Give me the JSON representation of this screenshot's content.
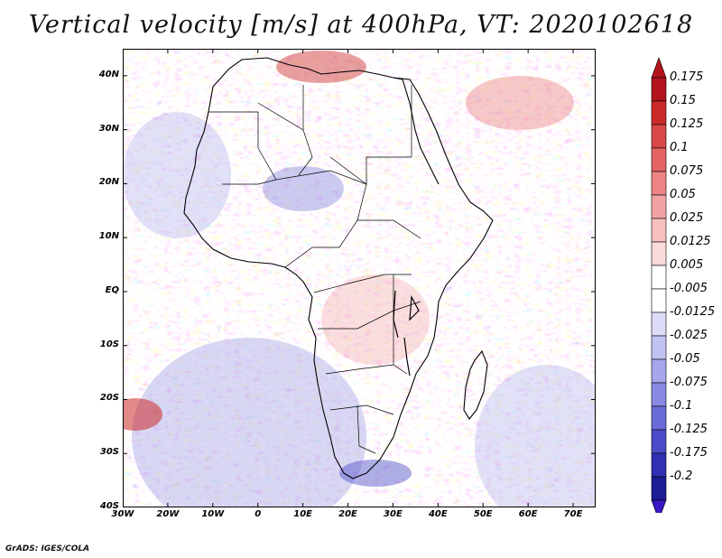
{
  "title": "Vertical velocity [m/s] at 400hPa, VT: 2020102618",
  "map": {
    "region": "Africa",
    "variable": "Vertical velocity",
    "units": "m/s",
    "level": "400hPa",
    "valid_time": "2020102618",
    "lat_range": [
      -40,
      45
    ],
    "lon_range": [
      -30,
      75
    ]
  },
  "axes": {
    "lat_ticks": [
      {
        "value": 40,
        "label": "40N"
      },
      {
        "value": 30,
        "label": "30N"
      },
      {
        "value": 20,
        "label": "20N"
      },
      {
        "value": 10,
        "label": "10N"
      },
      {
        "value": 0,
        "label": "EQ"
      },
      {
        "value": -10,
        "label": "10S"
      },
      {
        "value": -20,
        "label": "20S"
      },
      {
        "value": -30,
        "label": "30S"
      },
      {
        "value": -40,
        "label": "40S"
      }
    ],
    "lon_ticks": [
      {
        "value": -30,
        "label": "30W"
      },
      {
        "value": -20,
        "label": "20W"
      },
      {
        "value": -10,
        "label": "10W"
      },
      {
        "value": 0,
        "label": "0"
      },
      {
        "value": 10,
        "label": "10E"
      },
      {
        "value": 20,
        "label": "20E"
      },
      {
        "value": 30,
        "label": "30E"
      },
      {
        "value": 40,
        "label": "40E"
      },
      {
        "value": 50,
        "label": "50E"
      },
      {
        "value": 60,
        "label": "60E"
      },
      {
        "value": 70,
        "label": "70E"
      }
    ]
  },
  "colorbar": {
    "levels": [
      {
        "label": "0.175",
        "color": "#b3141c"
      },
      {
        "label": "0.15",
        "color": "#cc2a2a"
      },
      {
        "label": "0.125",
        "color": "#d94848"
      },
      {
        "label": "0.1",
        "color": "#e46464"
      },
      {
        "label": "0.075",
        "color": "#ec8484"
      },
      {
        "label": "0.05",
        "color": "#f2a2a2"
      },
      {
        "label": "0.025",
        "color": "#f7c0c0"
      },
      {
        "label": "0.0125",
        "color": "#fbdada"
      },
      {
        "label": "0.005",
        "color": "#ffffff"
      },
      {
        "label": "-0.005",
        "color": "#ffffff"
      },
      {
        "label": "-0.0125",
        "color": "#dcdcf8"
      },
      {
        "label": "-0.025",
        "color": "#c2c2f2"
      },
      {
        "label": "-0.05",
        "color": "#a6a6ec"
      },
      {
        "label": "-0.075",
        "color": "#8888e4"
      },
      {
        "label": "-0.1",
        "color": "#6a6ad8"
      },
      {
        "label": "-0.125",
        "color": "#4c4cc8"
      },
      {
        "label": "-0.175",
        "color": "#3030b4"
      },
      {
        "label": "-0.2",
        "color": "#1c1c96"
      }
    ],
    "max_arrow_color": "#b3141c",
    "min_arrow_color": "#3a16c6"
  },
  "credit": "GrADS: IGES/COLA"
}
